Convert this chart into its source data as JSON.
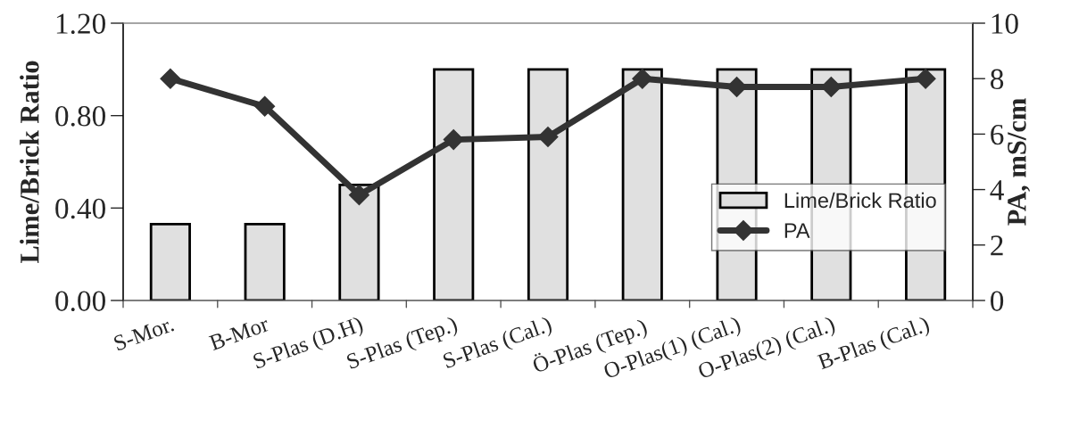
{
  "chart_data": {
    "type": "bar",
    "categories": [
      "S-Mor.",
      "B-Mor",
      "S-Plas (D.H)",
      "S-Plas (Tep.)",
      "S-Plas (Cal.)",
      "Ö-Plas (Tep.)",
      "O-Plas(1) (Cal.)",
      "O-Plas(2) (Cal.)",
      "B-Plas (Cal.)"
    ],
    "ylabel": "Lime/Brick Ratio",
    "y2label": "PA, mS/cm",
    "ylim": [
      0,
      1.2
    ],
    "yticks": [
      {
        "value": 0,
        "label": "0.00"
      },
      {
        "value": 0.4,
        "label": "0.40"
      },
      {
        "value": 0.8,
        "label": "0.80"
      },
      {
        "value": 1.2,
        "label": "1.20"
      }
    ],
    "y2lim": [
      0,
      10
    ],
    "y2ticks": [
      0,
      2,
      4,
      6,
      8,
      10
    ],
    "series": [
      {
        "name": "Lime/Brick Ratio",
        "color": "#e0e0e0",
        "values": [
          0.33,
          0.33,
          0.5,
          1.0,
          1.0,
          1.0,
          1.0,
          1.0,
          1.0
        ]
      },
      {
        "name": "PA",
        "type": "line",
        "axis": "y2",
        "color": "#333333",
        "marker": "diamond",
        "line_style": "solid",
        "values": [
          8.0,
          7.0,
          3.8,
          5.8,
          5.9,
          8.0,
          7.7,
          7.7,
          8.0
        ]
      }
    ],
    "grid": false,
    "legend": "right"
  }
}
